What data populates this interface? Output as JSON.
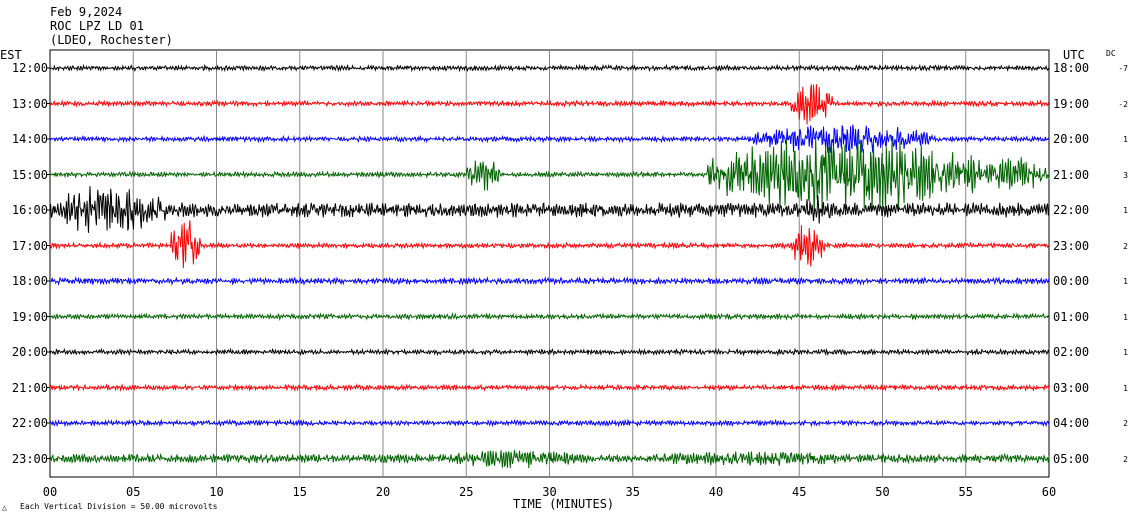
{
  "header": {
    "date": "Feb 9,2024",
    "station": "ROC LPZ LD 01",
    "network": "(LDEO, Rochester)"
  },
  "left_axis_label": "EST",
  "right_axis_label": "UTC",
  "dc_label": "DC",
  "xlabel": "TIME (MINUTES)",
  "footer": {
    "mark": "△",
    "scale": "Each Vertical Division =   50.00 microvolts"
  },
  "colors": {
    "black": "#000000",
    "red": "#ff0000",
    "blue": "#0000ff",
    "green": "#006400",
    "grid": "#888888"
  },
  "chart_data": {
    "type": "line",
    "xlim": [
      0,
      60
    ],
    "x_ticks": [
      "00",
      "05",
      "10",
      "15",
      "20",
      "25",
      "30",
      "35",
      "40",
      "45",
      "50",
      "55",
      "60"
    ],
    "rows": [
      {
        "est": "12:00",
        "utc": "18:00",
        "dc": "-7",
        "color": "black",
        "amp": 2.0,
        "events": []
      },
      {
        "est": "13:00",
        "utc": "19:00",
        "dc": "-2",
        "color": "red",
        "amp": 2.0,
        "events": [
          {
            "t0": 44.5,
            "t1": 47,
            "amp": 18
          }
        ]
      },
      {
        "est": "14:00",
        "utc": "20:00",
        "dc": "1",
        "color": "blue",
        "amp": 2.0,
        "events": [
          {
            "t0": 42,
            "t1": 53,
            "amp": 12
          }
        ]
      },
      {
        "est": "15:00",
        "utc": "21:00",
        "dc": "3",
        "color": "green",
        "amp": 2.0,
        "events": [
          {
            "t0": 25,
            "t1": 27,
            "amp": 14
          },
          {
            "t0": 39.5,
            "t1": 56,
            "amp": 32
          },
          {
            "t0": 56,
            "t1": 60,
            "amp": 14
          }
        ]
      },
      {
        "est": "16:00",
        "utc": "22:00",
        "dc": "1",
        "color": "black",
        "amp": 6.0,
        "events": [
          {
            "t0": 0,
            "t1": 7,
            "amp": 20
          },
          {
            "t0": 45,
            "t1": 47,
            "amp": 12
          }
        ]
      },
      {
        "est": "17:00",
        "utc": "23:00",
        "dc": "2",
        "color": "red",
        "amp": 2.0,
        "events": [
          {
            "t0": 7.2,
            "t1": 9,
            "amp": 24
          },
          {
            "t0": 44.5,
            "t1": 46.5,
            "amp": 18
          }
        ]
      },
      {
        "est": "18:00",
        "utc": "00:00",
        "dc": "1",
        "color": "blue",
        "amp": 2.5,
        "events": []
      },
      {
        "est": "19:00",
        "utc": "01:00",
        "dc": "1",
        "color": "green",
        "amp": 2.0,
        "events": []
      },
      {
        "est": "20:00",
        "utc": "02:00",
        "dc": "1",
        "color": "black",
        "amp": 2.0,
        "events": []
      },
      {
        "est": "21:00",
        "utc": "03:00",
        "dc": "1",
        "color": "red",
        "amp": 2.0,
        "events": []
      },
      {
        "est": "22:00",
        "utc": "04:00",
        "dc": "2",
        "color": "blue",
        "amp": 2.0,
        "events": []
      },
      {
        "est": "23:00",
        "utc": "05:00",
        "dc": "2",
        "color": "green",
        "amp": 3.5,
        "events": [
          {
            "t0": 24,
            "t1": 32,
            "amp": 8
          },
          {
            "t0": 35,
            "t1": 49,
            "amp": 6
          }
        ]
      }
    ]
  }
}
